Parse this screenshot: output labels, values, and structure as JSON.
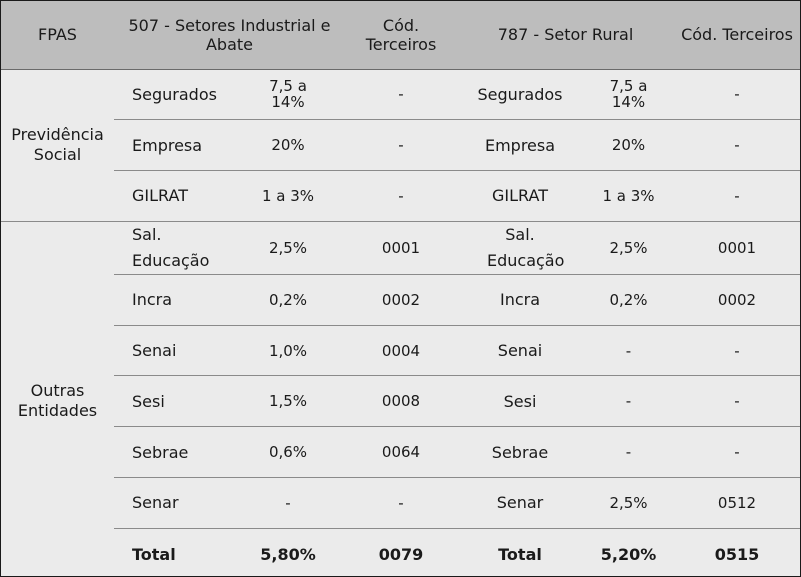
{
  "header": {
    "fpas": "FPAS",
    "setor1": "507 - Setores Industrial e Abate",
    "cod1": "Cód. Terceiros",
    "setor2": "787 - Setor Rural",
    "cod2": "Cód. Terceiros"
  },
  "groups": {
    "previdencia": "Previdência Social",
    "outras": "Outras Entidades"
  },
  "rows": [
    {
      "label1": "Segurados",
      "val1": "7,5 a 14%",
      "cod1": "-",
      "label2": "Segurados",
      "val2": "7,5 a 14%",
      "cod2": "-"
    },
    {
      "label1": "Empresa",
      "val1": "20%",
      "cod1": "-",
      "label2": "Empresa",
      "val2": "20%",
      "cod2": "-"
    },
    {
      "label1": "GILRAT",
      "val1": "1 a 3%",
      "cod1": "-",
      "label2": "GILRAT",
      "val2": "1 a 3%",
      "cod2": "-"
    },
    {
      "label1": "Sal. Educação",
      "val1": "2,5%",
      "cod1": "0001",
      "label2": "Sal. Educação",
      "val2": "2,5%",
      "cod2": "0001"
    },
    {
      "label1": "Incra",
      "val1": "0,2%",
      "cod1": "0002",
      "label2": "Incra",
      "val2": "0,2%",
      "cod2": "0002"
    },
    {
      "label1": "Senai",
      "val1": "1,0%",
      "cod1": "0004",
      "label2": "Senai",
      "val2": "-",
      "cod2": "-"
    },
    {
      "label1": "Sesi",
      "val1": "1,5%",
      "cod1": "0008",
      "label2": "Sesi",
      "val2": "-",
      "cod2": "-"
    },
    {
      "label1": "Sebrae",
      "val1": "0,6%",
      "cod1": "0064",
      "label2": "Sebrae",
      "val2": "-",
      "cod2": "-"
    },
    {
      "label1": "Senar",
      "val1": "-",
      "cod1": "-",
      "label2": "Senar",
      "val2": "2,5%",
      "cod2": "0512"
    }
  ],
  "total": {
    "label1": "Total",
    "val1": "5,80%",
    "cod1": "0079",
    "label2": "Total",
    "val2": "5,20%",
    "cod2": "0515"
  }
}
